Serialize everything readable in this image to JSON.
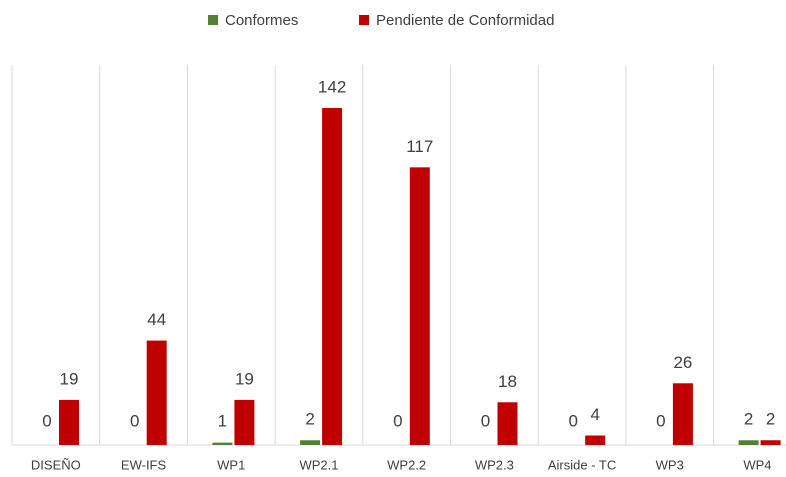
{
  "chart_data": {
    "type": "bar",
    "categories": [
      "DISEÑO",
      "EW-IFS",
      "WP1",
      "WP2.1",
      "WP2.2",
      "WP2.3",
      "Airside - TC",
      "WP3",
      "WP4"
    ],
    "series": [
      {
        "name": "Conformes",
        "color": "#548235",
        "values": [
          0,
          0,
          1,
          2,
          0,
          0,
          0,
          0,
          2
        ]
      },
      {
        "name": "Pendiente de Conformidad",
        "color": "#c00000",
        "values": [
          19,
          44,
          19,
          142,
          117,
          18,
          4,
          26,
          2
        ]
      }
    ],
    "legend": "top"
  }
}
